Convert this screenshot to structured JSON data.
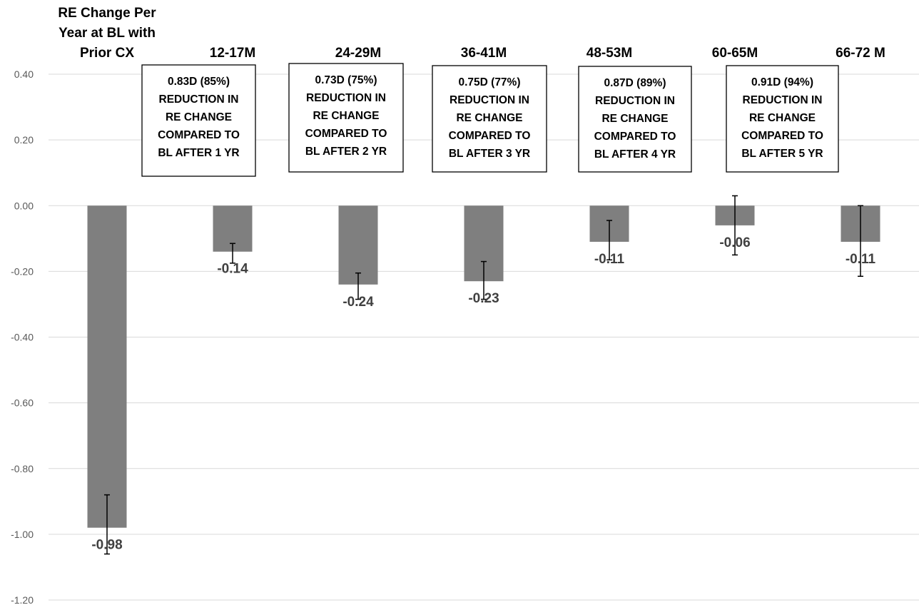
{
  "chart_data": {
    "type": "bar",
    "categories": [
      [
        "RE Change Per",
        "Year at BL with",
        "Prior CX"
      ],
      [
        "12-17M"
      ],
      [
        "24-29M"
      ],
      [
        "36-41M"
      ],
      [
        "48-53M"
      ],
      [
        "60-65M"
      ],
      [
        "66-72 M"
      ]
    ],
    "values": [
      -0.98,
      -0.14,
      -0.24,
      -0.23,
      -0.11,
      -0.06,
      -0.11
    ],
    "data_labels": [
      "-0.98",
      "-0.14",
      "-0.24",
      "-0.23",
      "-0.11",
      "-0.06",
      "-0.11"
    ],
    "error_bars": [
      {
        "low": -1.06,
        "high": -0.88
      },
      {
        "low": -0.175,
        "high": -0.115
      },
      {
        "low": -0.285,
        "high": -0.205
      },
      {
        "low": -0.285,
        "high": -0.17
      },
      {
        "low": -0.165,
        "high": -0.045
      },
      {
        "low": -0.15,
        "high": 0.03
      },
      {
        "low": -0.215,
        "high": 0.0
      }
    ],
    "ylim": [
      -1.2,
      0.4
    ],
    "yticks": [
      "0.40",
      "0.20",
      "0.00",
      "-0.20",
      "-0.40",
      "-0.60",
      "-0.80",
      "-1.00",
      "-1.20"
    ],
    "ytick_values": [
      0.4,
      0.2,
      0.0,
      -0.2,
      -0.4,
      -0.6,
      -0.8,
      -1.0,
      -1.2
    ],
    "grid": true,
    "title": "",
    "xlabel": "",
    "ylabel": "",
    "annotations": [
      {
        "category": 1,
        "lines": [
          "0.83D (85%)",
          "REDUCTION IN",
          "RE CHANGE",
          "COMPARED TO",
          "BL AFTER 1 YR"
        ]
      },
      {
        "category": 2,
        "lines": [
          "0.73D (75%)",
          "REDUCTION IN",
          "RE CHANGE",
          "COMPARED TO",
          "BL AFTER 2 YR"
        ]
      },
      {
        "category": 3,
        "lines": [
          "0.75D (77%)",
          "REDUCTION IN",
          "RE CHANGE",
          "COMPARED TO",
          "BL AFTER 3 YR"
        ]
      },
      {
        "category": 4,
        "lines": [
          "0.87D (89%)",
          "REDUCTION IN",
          "RE CHANGE",
          "COMPARED TO",
          "BL AFTER 4 YR"
        ]
      },
      {
        "category": 5,
        "lines": [
          "0.91D (94%)",
          "REDUCTION IN",
          "RE CHANGE",
          "COMPARED TO",
          "BL AFTER 5 YR"
        ]
      }
    ],
    "colors": {
      "bar": "#7f7f7f",
      "grid": "#d9d9d9",
      "axis_text": "#595959",
      "data_label": "#404040"
    }
  }
}
